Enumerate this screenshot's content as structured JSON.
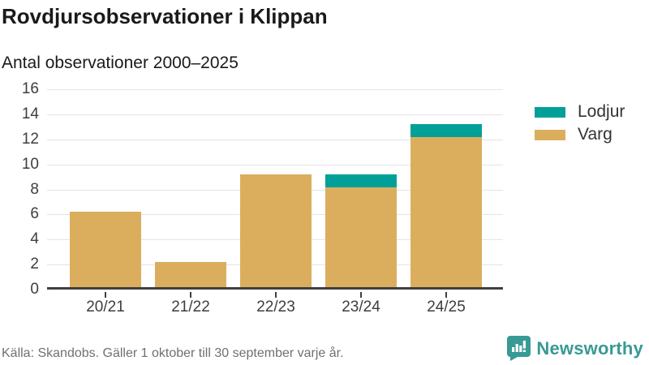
{
  "header": {
    "title": "Rovdjursobservationer i Klippan",
    "subtitle": "Antal observationer 2000–2025"
  },
  "chart_data": {
    "type": "bar",
    "stacked": true,
    "title": "Rovdjursobservationer i Klippan",
    "subtitle": "Antal observationer 2000–2025",
    "categories": [
      "20/21",
      "21/22",
      "22/23",
      "23/24",
      "24/25"
    ],
    "series": [
      {
        "name": "Varg",
        "color": "#dbae5e",
        "values": [
          6,
          2,
          9,
          8,
          12
        ]
      },
      {
        "name": "Lodjur",
        "color": "#00a099",
        "values": [
          0,
          0,
          0,
          1,
          1
        ]
      }
    ],
    "totals": [
      6,
      2,
      9,
      9,
      13
    ],
    "legend": [
      {
        "label": "Lodjur",
        "color": "#00a099"
      },
      {
        "label": "Varg",
        "color": "#dbae5e"
      }
    ],
    "legend_position": "right",
    "ylim": [
      0,
      16
    ],
    "yticks": [
      0,
      2,
      4,
      6,
      8,
      10,
      12,
      14,
      16
    ],
    "grid": true,
    "xlabel": "",
    "ylabel": ""
  },
  "footer": {
    "source": "Källa: Skandobs. Gäller 1 oktober till 30 september varje år.",
    "brand": "Newsworthy"
  },
  "colors": {
    "varg": "#dbae5e",
    "lodjur": "#00a099",
    "brand_teal": "#389a94",
    "axis_line": "#3f3f3f",
    "gridline": "#e4e4e4",
    "text": "#1a1a1a",
    "muted_text": "#707070"
  }
}
